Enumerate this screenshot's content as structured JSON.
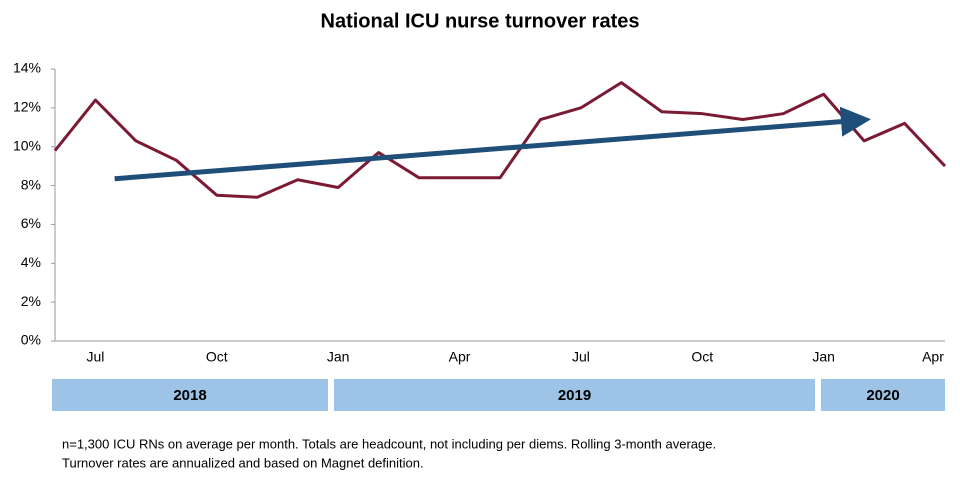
{
  "chart_data": {
    "type": "line",
    "title": "National ICU nurse turnover rates",
    "categories": [
      null,
      "Jul",
      null,
      null,
      "Oct",
      null,
      null,
      "Jan",
      null,
      null,
      "Apr",
      null,
      null,
      "Jul",
      null,
      null,
      "Oct",
      null,
      null,
      "Jan",
      null,
      null,
      "Apr"
    ],
    "series": [
      {
        "color": "#7b1a33",
        "values": [
          9.8,
          12.4,
          10.3,
          9.3,
          7.5,
          7.4,
          8.3,
          7.9,
          9.7,
          8.4,
          8.4,
          8.4,
          11.4,
          12.0,
          13.3,
          11.8,
          11.7,
          11.4,
          11.7,
          12.7,
          10.3,
          11.2,
          9.0
        ]
      }
    ],
    "trend": {
      "values": [
        8.35,
        11.35
      ],
      "color": "#1f4e79"
    },
    "ylim": [
      0,
      14
    ],
    "yticks": [
      {
        "value": 0,
        "label": "0%"
      },
      {
        "value": 2,
        "label": "2%"
      },
      {
        "value": 4,
        "label": "4%"
      },
      {
        "value": 6,
        "label": "6%"
      },
      {
        "value": 8,
        "label": "8%"
      },
      {
        "value": 10,
        "label": "10%"
      },
      {
        "value": 12,
        "label": "12%"
      },
      {
        "value": 14,
        "label": "14%"
      }
    ],
    "years": [
      "2018",
      "2019",
      "2020"
    ],
    "year_color": "#9dc3e6",
    "footnote": [
      "n=1,300 ICU RNs on average per month. Totals are headcount, not including per diems. Rolling 3-month average.",
      "Turnover rates are annualized and based on Magnet definition."
    ]
  }
}
